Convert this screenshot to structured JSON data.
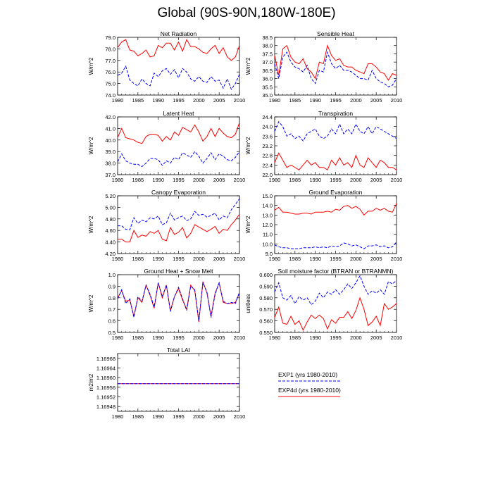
{
  "title": "Global (90S-90N,180W-180E)",
  "colors": {
    "exp1": "#0000ff",
    "exp4d": "#ff0000"
  },
  "legend": {
    "entries": [
      {
        "label": "EXP1 (yrs 1980-2010)",
        "color": "#0000ff",
        "style": "dashed"
      },
      {
        "label": "EXP4d (yrs 1980-2010)",
        "color": "#ff0000",
        "style": "solid"
      }
    ]
  },
  "chart_data": [
    {
      "type": "line",
      "title": "Net Radiation",
      "xlabel": "",
      "ylabel": "W/m^2",
      "xlim": [
        1980,
        2010
      ],
      "ylim": [
        74.0,
        79.0
      ],
      "yticks": [
        74.0,
        75.0,
        76.0,
        77.0,
        78.0,
        79.0
      ],
      "ytick_labels": [
        "74.0",
        "75.0",
        "76.0",
        "77.0",
        "78.0",
        "79.0"
      ],
      "series": [
        {
          "name": "EXP1",
          "style": "dashed",
          "values": [
            75.7,
            75.9,
            76.5,
            75.3,
            75.0,
            74.8,
            75.4,
            75.0,
            74.8,
            75.9,
            75.6,
            76.1,
            76.3,
            75.8,
            76.2,
            75.5,
            76.3,
            76.0,
            75.4,
            75.2,
            75.6,
            75.2,
            75.1,
            75.6,
            75.2,
            75.3,
            74.6,
            75.4,
            74.5,
            75.0,
            75.8
          ]
        },
        {
          "name": "EXP4d",
          "style": "solid",
          "values": [
            78.1,
            78.6,
            78.8,
            77.9,
            77.8,
            77.4,
            77.6,
            77.9,
            77.3,
            77.4,
            78.3,
            78.1,
            78.5,
            78.5,
            77.9,
            78.6,
            77.8,
            78.8,
            78.2,
            78.2,
            78.0,
            77.7,
            77.6,
            78.0,
            78.3,
            77.6,
            78.1,
            77.3,
            77.0,
            77.3,
            78.3
          ]
        }
      ]
    },
    {
      "type": "line",
      "title": "Sensible Heat",
      "xlabel": "",
      "ylabel": "W/m^2",
      "xlim": [
        1980,
        2010
      ],
      "ylim": [
        35.0,
        38.5
      ],
      "yticks": [
        35.0,
        35.5,
        36.0,
        36.5,
        37.0,
        37.5,
        38.0,
        38.5
      ],
      "ytick_labels": [
        "35.0",
        "35.5",
        "36.0",
        "36.5",
        "37.0",
        "37.5",
        "38.0",
        "38.5"
      ],
      "series": [
        {
          "name": "EXP1",
          "style": "dashed",
          "values": [
            36.9,
            36.0,
            37.3,
            37.6,
            37.0,
            36.7,
            36.6,
            36.4,
            36.8,
            36.0,
            35.7,
            36.5,
            36.4,
            37.6,
            36.9,
            36.6,
            36.8,
            36.5,
            36.5,
            36.4,
            36.2,
            36.0,
            36.0,
            35.9,
            36.5,
            36.0,
            35.8,
            35.7,
            35.5,
            35.6,
            36.0
          ]
        },
        {
          "name": "EXP4d",
          "style": "solid",
          "values": [
            37.4,
            36.2,
            37.8,
            38.0,
            37.3,
            37.0,
            36.9,
            37.2,
            36.6,
            36.4,
            36.0,
            37.0,
            36.9,
            38.0,
            37.4,
            37.1,
            37.2,
            36.8,
            36.7,
            36.7,
            36.5,
            36.4,
            36.3,
            36.9,
            36.9,
            36.7,
            36.4,
            36.3,
            35.9,
            36.3,
            36.2
          ]
        }
      ]
    },
    {
      "type": "line",
      "title": "Latent Heat",
      "xlabel": "",
      "ylabel": "W/m^2",
      "xlim": [
        1980,
        2010
      ],
      "ylim": [
        37.0,
        42.0
      ],
      "yticks": [
        37.0,
        38.0,
        39.0,
        40.0,
        41.0,
        42.0
      ],
      "ytick_labels": [
        "37.0",
        "38.0",
        "39.0",
        "40.0",
        "41.0",
        "42.0"
      ],
      "series": [
        {
          "name": "EXP1",
          "style": "dashed",
          "values": [
            38.1,
            38.8,
            38.2,
            38.0,
            37.9,
            37.9,
            37.7,
            38.0,
            38.4,
            38.4,
            38.3,
            37.8,
            38.2,
            38.0,
            38.5,
            38.3,
            38.9,
            38.7,
            38.5,
            39.0,
            38.6,
            38.0,
            38.4,
            38.9,
            38.3,
            38.8,
            38.6,
            38.3,
            38.2,
            38.5,
            39.0
          ]
        },
        {
          "name": "EXP4d",
          "style": "solid",
          "values": [
            40.2,
            41.0,
            40.2,
            40.1,
            40.0,
            39.8,
            39.7,
            40.3,
            40.5,
            40.5,
            40.4,
            39.9,
            40.3,
            40.0,
            40.7,
            40.4,
            41.1,
            40.9,
            40.7,
            41.3,
            40.7,
            39.9,
            40.3,
            41.0,
            40.3,
            41.0,
            40.6,
            40.3,
            40.2,
            40.5,
            41.5
          ]
        }
      ]
    },
    {
      "type": "line",
      "title": "Transpiration",
      "xlabel": "",
      "ylabel": "W/m^2",
      "xlim": [
        1980,
        2010
      ],
      "ylim": [
        22.0,
        24.4
      ],
      "yticks": [
        22.0,
        22.4,
        22.8,
        23.2,
        23.6,
        24.0,
        24.4
      ],
      "ytick_labels": [
        "22.0",
        "22.4",
        "22.8",
        "23.2",
        "23.6",
        "24.0",
        "24.4"
      ],
      "series": [
        {
          "name": "EXP1",
          "style": "dashed",
          "values": [
            23.8,
            24.2,
            24.0,
            23.6,
            23.7,
            23.5,
            23.6,
            23.4,
            23.7,
            23.8,
            23.9,
            23.6,
            23.5,
            23.6,
            23.9,
            23.7,
            24.1,
            23.7,
            23.9,
            23.7,
            24.1,
            23.8,
            23.7,
            24.0,
            23.7,
            24.0,
            23.9,
            23.8,
            23.7,
            23.6,
            23.5
          ]
        },
        {
          "name": "EXP4d",
          "style": "solid",
          "values": [
            22.5,
            22.9,
            22.6,
            22.3,
            22.4,
            22.3,
            22.2,
            22.4,
            22.6,
            22.4,
            22.5,
            22.3,
            22.3,
            22.2,
            22.6,
            22.4,
            22.7,
            22.4,
            22.5,
            22.3,
            22.8,
            22.4,
            22.3,
            22.7,
            22.5,
            22.3,
            22.6,
            22.5,
            22.3,
            22.3,
            22.2
          ]
        }
      ]
    },
    {
      "type": "line",
      "title": "Canopy Evaporation",
      "xlabel": "",
      "ylabel": "W/m^2",
      "xlim": [
        1980,
        2010
      ],
      "ylim": [
        4.2,
        5.2
      ],
      "yticks": [
        4.2,
        4.4,
        4.6,
        4.8,
        5.0,
        5.2
      ],
      "ytick_labels": [
        "4.20",
        "4.40",
        "4.60",
        "4.80",
        "5.00",
        "5.20"
      ],
      "series": [
        {
          "name": "EXP1",
          "style": "dashed",
          "values": [
            4.68,
            4.68,
            4.62,
            4.61,
            4.82,
            4.72,
            4.78,
            4.75,
            4.82,
            4.8,
            4.85,
            4.7,
            4.73,
            4.9,
            4.78,
            4.82,
            4.85,
            4.77,
            4.8,
            4.93,
            4.86,
            4.88,
            4.83,
            4.86,
            4.9,
            4.78,
            4.85,
            4.82,
            4.96,
            5.05,
            5.15
          ]
        },
        {
          "name": "EXP4d",
          "style": "solid",
          "values": [
            4.45,
            4.45,
            4.4,
            4.4,
            4.6,
            4.48,
            4.52,
            4.5,
            4.58,
            4.55,
            4.6,
            4.45,
            4.42,
            4.65,
            4.53,
            4.57,
            4.65,
            4.47,
            4.55,
            4.7,
            4.66,
            4.62,
            4.58,
            4.62,
            4.67,
            4.55,
            4.62,
            4.6,
            4.7,
            4.78,
            4.88
          ]
        }
      ]
    },
    {
      "type": "line",
      "title": "Ground Evaporation",
      "xlabel": "",
      "ylabel": "W/m^2",
      "xlim": [
        1980,
        2010
      ],
      "ylim": [
        9.0,
        15.0
      ],
      "yticks": [
        9.0,
        10.0,
        11.0,
        12.0,
        13.0,
        14.0,
        15.0
      ],
      "ytick_labels": [
        "9.0",
        "10.0",
        "11.0",
        "12.0",
        "13.0",
        "14.0",
        "15.0"
      ],
      "series": [
        {
          "name": "EXP1",
          "style": "dashed",
          "values": [
            9.9,
            9.7,
            9.6,
            9.6,
            9.5,
            9.5,
            9.5,
            9.6,
            9.6,
            9.6,
            9.7,
            9.6,
            9.7,
            9.6,
            9.8,
            9.7,
            9.8,
            10.1,
            10.0,
            9.8,
            9.9,
            9.7,
            9.5,
            9.8,
            9.8,
            9.9,
            9.7,
            9.8,
            9.6,
            9.7,
            10.2
          ]
        },
        {
          "name": "EXP4d",
          "style": "solid",
          "values": [
            13.5,
            13.8,
            13.3,
            13.3,
            13.2,
            13.1,
            13.1,
            13.2,
            13.2,
            13.1,
            13.3,
            13.3,
            13.3,
            13.4,
            13.3,
            13.6,
            13.5,
            13.9,
            14.0,
            13.7,
            13.9,
            13.6,
            13.0,
            13.4,
            13.4,
            13.7,
            13.5,
            13.7,
            13.4,
            13.3,
            14.2
          ]
        }
      ]
    },
    {
      "type": "line",
      "title": "Ground Heat + Snow Melt",
      "xlabel": "",
      "ylabel": "W/m^2",
      "xlim": [
        1980,
        2010
      ],
      "ylim": [
        0.5,
        1.0
      ],
      "yticks": [
        0.5,
        0.6,
        0.7,
        0.8,
        0.9,
        1.0
      ],
      "ytick_labels": [
        "0.5",
        "0.6",
        "0.7",
        "0.8",
        "0.9",
        "1.0"
      ],
      "series": [
        {
          "name": "EXP1",
          "style": "dashed",
          "values": [
            0.79,
            0.87,
            0.75,
            0.79,
            0.63,
            0.81,
            0.77,
            0.91,
            0.83,
            0.72,
            0.93,
            0.81,
            0.91,
            0.68,
            0.81,
            0.89,
            0.79,
            0.69,
            0.9,
            0.87,
            0.6,
            0.93,
            0.85,
            0.63,
            0.83,
            0.93,
            0.77,
            0.75,
            0.76,
            0.75,
            0.85
          ]
        },
        {
          "name": "EXP4d",
          "style": "solid",
          "values": [
            0.8,
            0.86,
            0.77,
            0.78,
            0.64,
            0.8,
            0.76,
            0.91,
            0.82,
            0.71,
            0.93,
            0.8,
            0.91,
            0.69,
            0.81,
            0.88,
            0.78,
            0.7,
            0.91,
            0.86,
            0.59,
            0.94,
            0.84,
            0.64,
            0.84,
            0.93,
            0.76,
            0.75,
            0.75,
            0.76,
            0.84
          ]
        }
      ]
    },
    {
      "type": "line",
      "title": "Soil moisture factor (BTRAN or BTRANMN)",
      "xlabel": "",
      "ylabel": "unitless",
      "xlim": [
        1980,
        2010
      ],
      "ylim": [
        0.55,
        0.6
      ],
      "yticks": [
        0.55,
        0.56,
        0.57,
        0.58,
        0.59,
        0.6
      ],
      "ytick_labels": [
        "0.550",
        "0.560",
        "0.570",
        "0.580",
        "0.590",
        "0.600"
      ],
      "series": [
        {
          "name": "EXP1",
          "style": "dashed",
          "values": [
            0.585,
            0.593,
            0.58,
            0.578,
            0.582,
            0.575,
            0.581,
            0.578,
            0.58,
            0.574,
            0.577,
            0.584,
            0.58,
            0.585,
            0.583,
            0.587,
            0.583,
            0.587,
            0.592,
            0.588,
            0.593,
            0.599,
            0.59,
            0.583,
            0.586,
            0.584,
            0.587,
            0.583,
            0.594,
            0.592,
            0.595
          ]
        },
        {
          "name": "EXP4d",
          "style": "solid",
          "values": [
            0.563,
            0.572,
            0.558,
            0.557,
            0.564,
            0.557,
            0.56,
            0.552,
            0.559,
            0.565,
            0.562,
            0.565,
            0.562,
            0.553,
            0.561,
            0.558,
            0.563,
            0.563,
            0.568,
            0.562,
            0.569,
            0.58,
            0.57,
            0.556,
            0.559,
            0.564,
            0.556,
            0.575,
            0.57,
            0.572,
            0.575
          ]
        }
      ]
    },
    {
      "type": "line",
      "title": "Total LAI",
      "xlabel": "",
      "ylabel": "m2/m2",
      "xlim": [
        1980,
        2010
      ],
      "ylim": [
        1.16946,
        1.1697
      ],
      "yticks": [
        1.16948,
        1.16952,
        1.16956,
        1.1696,
        1.16964,
        1.16968
      ],
      "ytick_labels": [
        "1.16948",
        "1.16952",
        "1.16956",
        "1.16960",
        "1.16964",
        "1.16968"
      ],
      "series": [
        {
          "name": "EXP1",
          "style": "dashed",
          "values": [
            1.169575,
            1.169575,
            1.169575,
            1.169575,
            1.169575,
            1.169575,
            1.169575,
            1.169575,
            1.169575,
            1.169575,
            1.169575,
            1.169575,
            1.169575,
            1.169575,
            1.169575,
            1.169575,
            1.169575,
            1.169575,
            1.169575,
            1.169575,
            1.169575,
            1.169575,
            1.169575,
            1.169575,
            1.169575,
            1.169575,
            1.169575,
            1.169575,
            1.169575,
            1.169575,
            1.169575
          ]
        },
        {
          "name": "EXP4d",
          "style": "solid",
          "values": [
            1.169575,
            1.169575,
            1.169575,
            1.169575,
            1.169575,
            1.169575,
            1.169575,
            1.169575,
            1.169575,
            1.169575,
            1.169575,
            1.169575,
            1.169575,
            1.169575,
            1.169575,
            1.169575,
            1.169575,
            1.169575,
            1.169575,
            1.169575,
            1.169575,
            1.169575,
            1.169575,
            1.169575,
            1.169575,
            1.169575,
            1.169575,
            1.169575,
            1.169575,
            1.169575,
            1.169575
          ]
        }
      ]
    }
  ]
}
